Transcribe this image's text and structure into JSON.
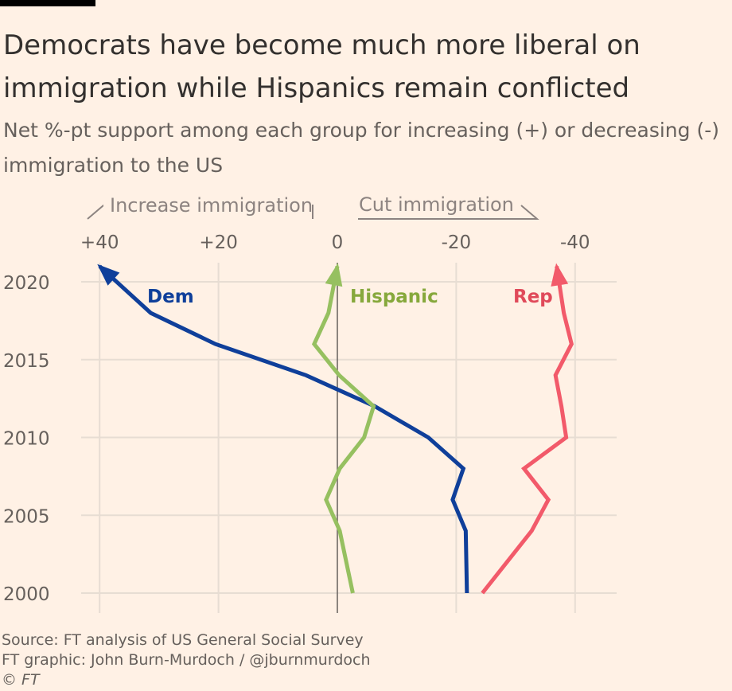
{
  "title": "Democrats have become much more liberal on immigration while Hispanics remain conflicted",
  "subtitle": "Net %-pt support among each group for increasing (+) or decreasing (-) immigration to the US",
  "annotations": {
    "increase": "Increase immigration",
    "cut": "Cut immigration"
  },
  "footer": {
    "source": "Source: FT analysis of US General Social Survey",
    "graphic": "FT graphic: John Burn-Murdoch / @jburnmurdoch",
    "copyright": "© FT"
  },
  "colors": {
    "background": "#fff1e5",
    "grid": "#e7ddd3",
    "zero_line": "#66605c",
    "dem": "#0f3f9a",
    "hispanic": "#96c060",
    "rep": "#f25a6a"
  },
  "chart_data": {
    "type": "line",
    "orientation": "horizontal-value-axis",
    "x_axis": {
      "ticks": [
        40,
        20,
        0,
        -20,
        -40
      ],
      "tick_labels": [
        "+40",
        "+20",
        "0",
        "-20",
        "-40"
      ],
      "range": [
        40,
        -40
      ],
      "reversed": true
    },
    "y_axis": {
      "ticks": [
        2020,
        2015,
        2010,
        2005,
        2000
      ],
      "tick_labels": [
        "2020",
        "2015",
        "2010",
        "2005",
        "2000"
      ],
      "range": [
        2000,
        2022
      ]
    },
    "grid": true,
    "series": [
      {
        "name": "Dem",
        "points": [
          {
            "year": 2000,
            "value": -21.8
          },
          {
            "year": 2004,
            "value": -21.6
          },
          {
            "year": 2006,
            "value": -19.4
          },
          {
            "year": 2008,
            "value": -21.2
          },
          {
            "year": 2010,
            "value": -15.3
          },
          {
            "year": 2012,
            "value": -6.3
          },
          {
            "year": 2014,
            "value": 5.3
          },
          {
            "year": 2016,
            "value": 20.5
          },
          {
            "year": 2018,
            "value": 31.4
          },
          {
            "year": 2021,
            "value": 40
          }
        ]
      },
      {
        "name": "Hispanic",
        "points": [
          {
            "year": 2000,
            "value": -2.6
          },
          {
            "year": 2004,
            "value": -0.4
          },
          {
            "year": 2006,
            "value": 1.9
          },
          {
            "year": 2008,
            "value": -0.4
          },
          {
            "year": 2010,
            "value": -4.5
          },
          {
            "year": 2012,
            "value": -6.1
          },
          {
            "year": 2014,
            "value": -0.3
          },
          {
            "year": 2016,
            "value": 3.9
          },
          {
            "year": 2018,
            "value": 1.5
          },
          {
            "year": 2021,
            "value": 0
          }
        ]
      },
      {
        "name": "Rep",
        "points": [
          {
            "year": 2000,
            "value": -24.4
          },
          {
            "year": 2004,
            "value": -32.7
          },
          {
            "year": 2006,
            "value": -35.5
          },
          {
            "year": 2008,
            "value": -31.4
          },
          {
            "year": 2010,
            "value": -38.5
          },
          {
            "year": 2012,
            "value": -37.7
          },
          {
            "year": 2014,
            "value": -36.7
          },
          {
            "year": 2016,
            "value": -39.4
          },
          {
            "year": 2018,
            "value": -38.1
          },
          {
            "year": 2021,
            "value": -36.9
          }
        ]
      }
    ]
  }
}
